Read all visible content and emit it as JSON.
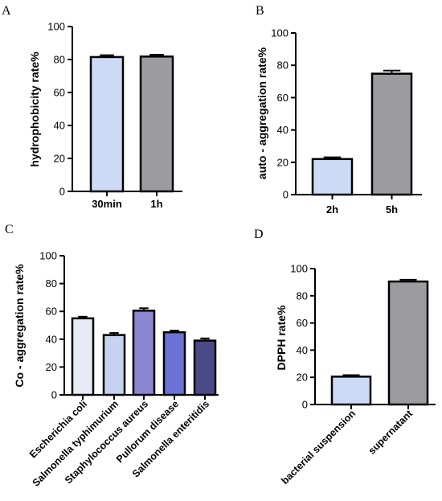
{
  "chart_data": [
    {
      "panel": "A",
      "type": "bar",
      "categories": [
        "30min",
        "1h"
      ],
      "values": [
        81.5,
        81.8
      ],
      "errors": [
        0.4,
        0.4
      ],
      "colors": [
        "#ccdaf5",
        "#9b9ba0"
      ],
      "ylabel": "hydrophobicity rate%",
      "ylim": [
        0,
        100
      ],
      "yticks": [
        0,
        20,
        40,
        60,
        80,
        100
      ]
    },
    {
      "panel": "B",
      "type": "bar",
      "categories": [
        "2h",
        "5h"
      ],
      "values": [
        22.0,
        74.8
      ],
      "errors": [
        0.3,
        1.2
      ],
      "colors": [
        "#ccdaf5",
        "#9b9ba0"
      ],
      "ylabel": "auto - aggregation rate%",
      "ylim": [
        0,
        100
      ],
      "yticks": [
        0,
        20,
        40,
        60,
        80,
        100
      ]
    },
    {
      "panel": "C",
      "type": "bar",
      "categories": [
        "Escherichia coli",
        "Salmonella typhimurium",
        "Staphylococcus aureus",
        "Pullorum disease",
        "Salmonella enteritidis"
      ],
      "values": [
        55.0,
        43.0,
        60.5,
        45.0,
        39.0
      ],
      "errors": [
        0.3,
        0.6,
        0.9,
        0.3,
        0.7
      ],
      "colors": [
        "#e6eaf6",
        "#c5d3f0",
        "#8b86cf",
        "#6b72d6",
        "#4a4a87"
      ],
      "ylabel": "Co - aggregation rate%",
      "ylim": [
        0,
        100
      ],
      "yticks": [
        0,
        20,
        40,
        60,
        80,
        100
      ]
    },
    {
      "panel": "D",
      "type": "bar",
      "categories": [
        "bacterial suspension",
        "supernatant"
      ],
      "values": [
        20.5,
        90.5
      ],
      "errors": [
        0.2,
        0.4
      ],
      "colors": [
        "#ccdaf5",
        "#9b9ba0"
      ],
      "ylabel": "DPPH rate%",
      "ylim": [
        0,
        100
      ],
      "yticks": [
        0,
        20,
        40,
        60,
        80,
        100
      ]
    }
  ]
}
